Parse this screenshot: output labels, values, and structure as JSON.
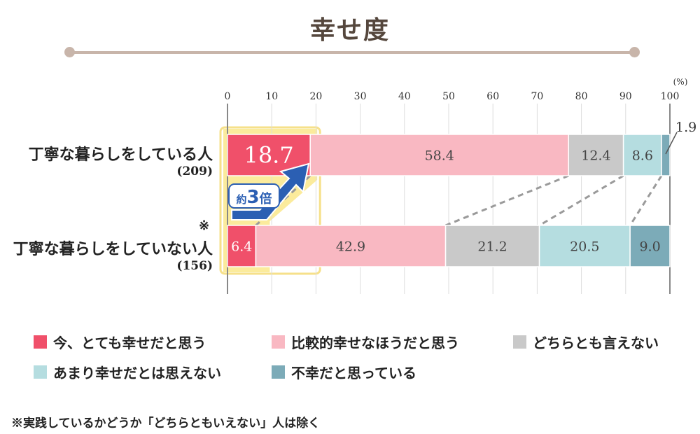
{
  "title": "幸せ度",
  "footnote": "※実践しているかどうか「どちらともいえない」人は除く",
  "note_mark": "※",
  "chart_data": {
    "type": "bar",
    "orientation": "horizontal-stacked-100",
    "unit_label": "(%)",
    "xlim": [
      0,
      100
    ],
    "x_ticks": [
      "0",
      "10",
      "20",
      "30",
      "40",
      "50",
      "60",
      "70",
      "80",
      "90",
      "100"
    ],
    "categories": [
      {
        "name": "丁寧な暮らしをしている人",
        "n": "(209)"
      },
      {
        "name": "丁寧な暮らしをしていない人",
        "n": "(156)",
        "note": "※"
      }
    ],
    "series": [
      {
        "name": "今、とても幸せだと思う",
        "color": "#f0506a",
        "values": [
          18.7,
          6.4
        ],
        "labels": [
          "18.7",
          "6.4"
        ]
      },
      {
        "name": "比較的幸せなほうだと思う",
        "color": "#f9b8c2",
        "values": [
          58.4,
          42.9
        ],
        "labels": [
          "58.4",
          "42.9"
        ]
      },
      {
        "name": "どちらとも言えない",
        "color": "#c9c9c9",
        "values": [
          12.4,
          21.2
        ],
        "labels": [
          "12.4",
          "21.2"
        ]
      },
      {
        "name": "あまり幸せだとは思えない",
        "color": "#b5dde0",
        "values": [
          8.6,
          20.5
        ],
        "labels": [
          "8.6",
          "20.5"
        ]
      },
      {
        "name": "不幸だと思っている",
        "color": "#7cabb8",
        "values": [
          1.9,
          9.0
        ],
        "labels": [
          "1.9",
          "9.0"
        ]
      }
    ],
    "annotation": {
      "prefix": "約",
      "number": "3",
      "suffix": "倍"
    }
  }
}
